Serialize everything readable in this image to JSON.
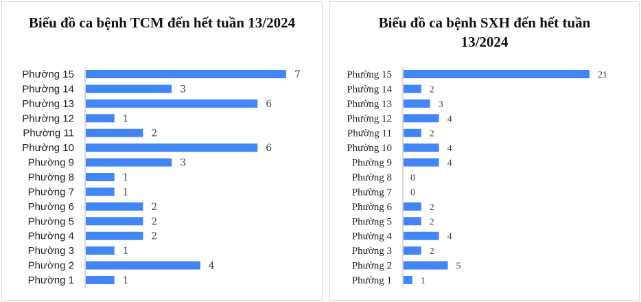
{
  "chart_data": [
    {
      "type": "bar",
      "orientation": "horizontal",
      "title": "Biểu đồ ca bệnh TCM đến hết tuần 13/2024",
      "categories": [
        "Phường 15",
        "Phường 14",
        "Phường 13",
        "Phường 12",
        "Phường 11",
        "Phường 10",
        "Phường 9",
        "Phường 8",
        "Phường 7",
        "Phường 6",
        "Phường 5",
        "Phường 4",
        "Phường 3",
        "Phường 2",
        "Phường 1"
      ],
      "values": [
        7,
        3,
        6,
        1,
        2,
        6,
        3,
        1,
        1,
        2,
        2,
        2,
        1,
        4,
        1
      ],
      "color": "#4285f4",
      "xlim": [
        0,
        7
      ],
      "grid": false,
      "data_labels": true
    },
    {
      "type": "bar",
      "orientation": "horizontal",
      "title": "Biểu đồ ca bệnh SXH đến hết tuần 13/2024",
      "categories": [
        "Phường 15",
        "Phường 14",
        "Phường 13",
        "Phường 12",
        "Phường 11",
        "Phường 10",
        "Phường 9",
        "Phường 8",
        "Phường 7",
        "Phường 6",
        "Phường 5",
        "Phường 4",
        "Phường 3",
        "Phường 2",
        "Phường 1"
      ],
      "values": [
        21,
        2,
        3,
        4,
        2,
        4,
        4,
        0,
        0,
        2,
        2,
        4,
        2,
        5,
        1
      ],
      "color": "#4285f4",
      "xlim": [
        0,
        21
      ],
      "grid": false,
      "data_labels": true
    }
  ]
}
